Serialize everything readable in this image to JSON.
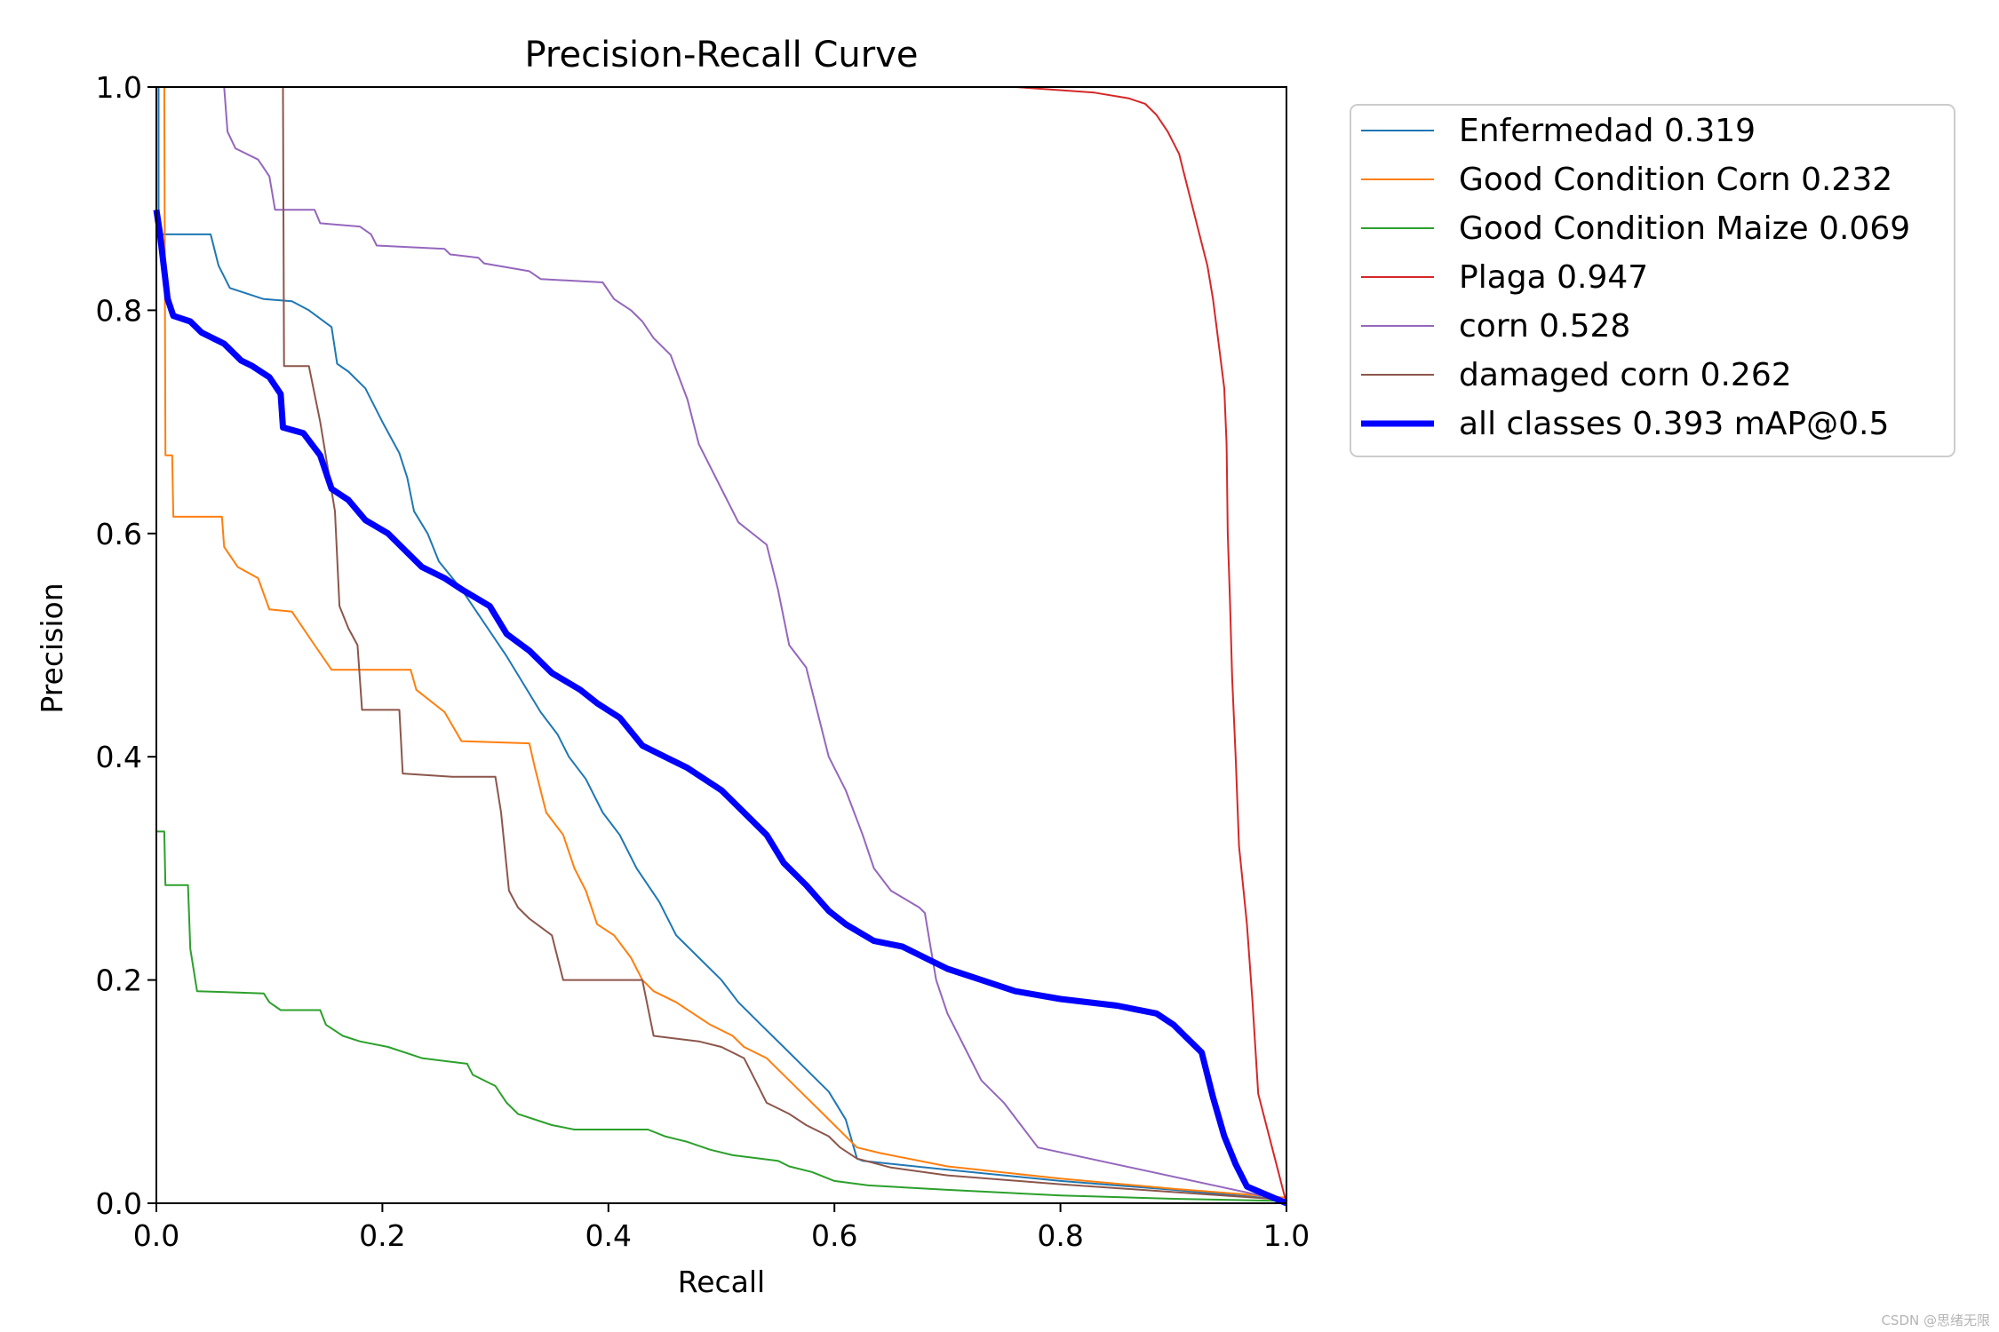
{
  "chart_data": {
    "type": "line",
    "title": "Precision-Recall Curve",
    "xlabel": "Recall",
    "ylabel": "Precision",
    "xlim": [
      0,
      1
    ],
    "ylim": [
      0,
      1
    ],
    "grid": false,
    "legend_position": "outside-top-right",
    "xticks": [
      "0.0",
      "0.2",
      "0.4",
      "0.6",
      "0.8",
      "1.0"
    ],
    "yticks": [
      "0.0",
      "0.2",
      "0.4",
      "0.6",
      "0.8",
      "1.0"
    ],
    "series": [
      {
        "name": "Enfermedad",
        "ap": "0.319",
        "label": "Enfermedad 0.319",
        "color": "#1f77b4",
        "width": 2,
        "points": [
          [
            0,
            1.0
          ],
          [
            0.002,
            1.0
          ],
          [
            0.002,
            0.868
          ],
          [
            0.048,
            0.868
          ],
          [
            0.055,
            0.84
          ],
          [
            0.065,
            0.82
          ],
          [
            0.095,
            0.81
          ],
          [
            0.12,
            0.808
          ],
          [
            0.135,
            0.8
          ],
          [
            0.155,
            0.785
          ],
          [
            0.16,
            0.752
          ],
          [
            0.17,
            0.745
          ],
          [
            0.185,
            0.73
          ],
          [
            0.2,
            0.7
          ],
          [
            0.215,
            0.672
          ],
          [
            0.222,
            0.65
          ],
          [
            0.228,
            0.62
          ],
          [
            0.24,
            0.6
          ],
          [
            0.25,
            0.575
          ],
          [
            0.27,
            0.55
          ],
          [
            0.29,
            0.52
          ],
          [
            0.31,
            0.49
          ],
          [
            0.325,
            0.465
          ],
          [
            0.34,
            0.44
          ],
          [
            0.355,
            0.42
          ],
          [
            0.365,
            0.4
          ],
          [
            0.38,
            0.38
          ],
          [
            0.395,
            0.35
          ],
          [
            0.41,
            0.33
          ],
          [
            0.425,
            0.3
          ],
          [
            0.445,
            0.27
          ],
          [
            0.46,
            0.24
          ],
          [
            0.48,
            0.22
          ],
          [
            0.5,
            0.2
          ],
          [
            0.515,
            0.18
          ],
          [
            0.535,
            0.16
          ],
          [
            0.555,
            0.14
          ],
          [
            0.575,
            0.12
          ],
          [
            0.595,
            0.1
          ],
          [
            0.61,
            0.075
          ],
          [
            0.62,
            0.04
          ],
          [
            0.625,
            0.038
          ],
          [
            0.7,
            0.03
          ],
          [
            0.8,
            0.02
          ],
          [
            0.9,
            0.012
          ],
          [
            1.0,
            0.003
          ]
        ]
      },
      {
        "name": "Good Condition Corn",
        "ap": "0.232",
        "label": "Good Condition Corn 0.232",
        "color": "#ff7f0e",
        "width": 2,
        "points": [
          [
            0,
            1.0
          ],
          [
            0.007,
            1.0
          ],
          [
            0.008,
            0.67
          ],
          [
            0.014,
            0.67
          ],
          [
            0.015,
            0.615
          ],
          [
            0.058,
            0.615
          ],
          [
            0.06,
            0.588
          ],
          [
            0.072,
            0.57
          ],
          [
            0.09,
            0.56
          ],
          [
            0.1,
            0.532
          ],
          [
            0.12,
            0.53
          ],
          [
            0.14,
            0.5
          ],
          [
            0.155,
            0.478
          ],
          [
            0.225,
            0.478
          ],
          [
            0.23,
            0.46
          ],
          [
            0.255,
            0.44
          ],
          [
            0.27,
            0.414
          ],
          [
            0.33,
            0.412
          ],
          [
            0.335,
            0.39
          ],
          [
            0.345,
            0.35
          ],
          [
            0.36,
            0.33
          ],
          [
            0.37,
            0.3
          ],
          [
            0.38,
            0.28
          ],
          [
            0.39,
            0.25
          ],
          [
            0.405,
            0.24
          ],
          [
            0.42,
            0.22
          ],
          [
            0.43,
            0.2
          ],
          [
            0.44,
            0.19
          ],
          [
            0.46,
            0.18
          ],
          [
            0.49,
            0.16
          ],
          [
            0.51,
            0.15
          ],
          [
            0.52,
            0.14
          ],
          [
            0.54,
            0.13
          ],
          [
            0.55,
            0.12
          ],
          [
            0.56,
            0.11
          ],
          [
            0.57,
            0.1
          ],
          [
            0.58,
            0.09
          ],
          [
            0.59,
            0.08
          ],
          [
            0.6,
            0.07
          ],
          [
            0.61,
            0.06
          ],
          [
            0.62,
            0.05
          ],
          [
            0.64,
            0.045
          ],
          [
            0.7,
            0.033
          ],
          [
            0.8,
            0.022
          ],
          [
            0.9,
            0.013
          ],
          [
            1.0,
            0.005
          ]
        ]
      },
      {
        "name": "Good Condition Maize",
        "ap": "0.069",
        "label": "Good Condition Maize 0.069",
        "color": "#2ca02c",
        "width": 2,
        "points": [
          [
            0,
            0.333
          ],
          [
            0.007,
            0.333
          ],
          [
            0.008,
            0.285
          ],
          [
            0.028,
            0.285
          ],
          [
            0.03,
            0.228
          ],
          [
            0.036,
            0.19
          ],
          [
            0.095,
            0.188
          ],
          [
            0.1,
            0.18
          ],
          [
            0.11,
            0.173
          ],
          [
            0.145,
            0.173
          ],
          [
            0.15,
            0.16
          ],
          [
            0.165,
            0.15
          ],
          [
            0.18,
            0.145
          ],
          [
            0.205,
            0.14
          ],
          [
            0.235,
            0.13
          ],
          [
            0.275,
            0.125
          ],
          [
            0.28,
            0.115
          ],
          [
            0.3,
            0.105
          ],
          [
            0.31,
            0.09
          ],
          [
            0.32,
            0.08
          ],
          [
            0.35,
            0.07
          ],
          [
            0.37,
            0.066
          ],
          [
            0.435,
            0.066
          ],
          [
            0.45,
            0.06
          ],
          [
            0.47,
            0.055
          ],
          [
            0.49,
            0.048
          ],
          [
            0.51,
            0.043
          ],
          [
            0.55,
            0.038
          ],
          [
            0.56,
            0.033
          ],
          [
            0.58,
            0.028
          ],
          [
            0.6,
            0.02
          ],
          [
            0.63,
            0.016
          ],
          [
            0.7,
            0.012
          ],
          [
            0.8,
            0.007
          ],
          [
            0.9,
            0.004
          ],
          [
            1.0,
            0.002
          ]
        ]
      },
      {
        "name": "Plaga",
        "ap": "0.947",
        "label": "Plaga 0.947",
        "color": "#d62728",
        "width": 2,
        "points": [
          [
            0.56,
            1.0
          ],
          [
            0.76,
            1.0
          ],
          [
            0.83,
            0.995
          ],
          [
            0.86,
            0.99
          ],
          [
            0.875,
            0.985
          ],
          [
            0.885,
            0.975
          ],
          [
            0.895,
            0.96
          ],
          [
            0.905,
            0.94
          ],
          [
            0.91,
            0.92
          ],
          [
            0.915,
            0.9
          ],
          [
            0.92,
            0.88
          ],
          [
            0.925,
            0.86
          ],
          [
            0.93,
            0.84
          ],
          [
            0.935,
            0.81
          ],
          [
            0.94,
            0.77
          ],
          [
            0.945,
            0.73
          ],
          [
            0.947,
            0.68
          ],
          [
            0.948,
            0.6
          ],
          [
            0.95,
            0.54
          ],
          [
            0.952,
            0.47
          ],
          [
            0.955,
            0.4
          ],
          [
            0.958,
            0.32
          ],
          [
            0.962,
            0.28
          ],
          [
            0.965,
            0.25
          ],
          [
            0.97,
            0.18
          ],
          [
            0.975,
            0.098
          ],
          [
            1.0,
            0.0
          ]
        ]
      },
      {
        "name": "corn",
        "ap": "0.528",
        "label": "corn 0.528",
        "color": "#9467bd",
        "width": 2,
        "points": [
          [
            0.06,
            1.0
          ],
          [
            0.063,
            0.96
          ],
          [
            0.07,
            0.945
          ],
          [
            0.09,
            0.935
          ],
          [
            0.1,
            0.92
          ],
          [
            0.105,
            0.89
          ],
          [
            0.14,
            0.89
          ],
          [
            0.145,
            0.878
          ],
          [
            0.18,
            0.875
          ],
          [
            0.19,
            0.868
          ],
          [
            0.195,
            0.858
          ],
          [
            0.255,
            0.855
          ],
          [
            0.26,
            0.85
          ],
          [
            0.285,
            0.847
          ],
          [
            0.29,
            0.842
          ],
          [
            0.33,
            0.835
          ],
          [
            0.34,
            0.828
          ],
          [
            0.395,
            0.825
          ],
          [
            0.405,
            0.81
          ],
          [
            0.42,
            0.8
          ],
          [
            0.43,
            0.79
          ],
          [
            0.44,
            0.775
          ],
          [
            0.455,
            0.76
          ],
          [
            0.47,
            0.72
          ],
          [
            0.48,
            0.68
          ],
          [
            0.5,
            0.64
          ],
          [
            0.515,
            0.61
          ],
          [
            0.54,
            0.59
          ],
          [
            0.55,
            0.55
          ],
          [
            0.56,
            0.5
          ],
          [
            0.575,
            0.48
          ],
          [
            0.585,
            0.44
          ],
          [
            0.595,
            0.4
          ],
          [
            0.61,
            0.37
          ],
          [
            0.625,
            0.33
          ],
          [
            0.635,
            0.3
          ],
          [
            0.65,
            0.28
          ],
          [
            0.675,
            0.265
          ],
          [
            0.68,
            0.26
          ],
          [
            0.685,
            0.23
          ],
          [
            0.69,
            0.2
          ],
          [
            0.7,
            0.17
          ],
          [
            0.715,
            0.14
          ],
          [
            0.73,
            0.11
          ],
          [
            0.75,
            0.09
          ],
          [
            0.765,
            0.07
          ],
          [
            0.78,
            0.05
          ],
          [
            1.0,
            0.002
          ]
        ]
      },
      {
        "name": "damaged corn",
        "ap": "0.262",
        "label": "damaged corn 0.262",
        "color": "#8c564b",
        "width": 2,
        "points": [
          [
            0.112,
            1.0
          ],
          [
            0.113,
            0.75
          ],
          [
            0.135,
            0.75
          ],
          [
            0.145,
            0.7
          ],
          [
            0.158,
            0.62
          ],
          [
            0.162,
            0.535
          ],
          [
            0.17,
            0.515
          ],
          [
            0.178,
            0.5
          ],
          [
            0.182,
            0.442
          ],
          [
            0.215,
            0.442
          ],
          [
            0.218,
            0.385
          ],
          [
            0.262,
            0.382
          ],
          [
            0.3,
            0.382
          ],
          [
            0.305,
            0.35
          ],
          [
            0.312,
            0.28
          ],
          [
            0.32,
            0.265
          ],
          [
            0.33,
            0.255
          ],
          [
            0.35,
            0.24
          ],
          [
            0.36,
            0.2
          ],
          [
            0.43,
            0.2
          ],
          [
            0.44,
            0.15
          ],
          [
            0.48,
            0.145
          ],
          [
            0.5,
            0.14
          ],
          [
            0.52,
            0.13
          ],
          [
            0.53,
            0.11
          ],
          [
            0.54,
            0.09
          ],
          [
            0.56,
            0.08
          ],
          [
            0.575,
            0.07
          ],
          [
            0.595,
            0.06
          ],
          [
            0.605,
            0.05
          ],
          [
            0.62,
            0.04
          ],
          [
            0.65,
            0.032
          ],
          [
            0.7,
            0.025
          ],
          [
            0.8,
            0.017
          ],
          [
            0.9,
            0.01
          ],
          [
            1.0,
            0.003
          ]
        ]
      },
      {
        "name": "all classes",
        "ap": "0.393",
        "label": "all classes 0.393 mAP@0.5",
        "color": "#0000ff",
        "width": 7,
        "points": [
          [
            0,
            0.89
          ],
          [
            0.003,
            0.87
          ],
          [
            0.01,
            0.81
          ],
          [
            0.015,
            0.795
          ],
          [
            0.03,
            0.79
          ],
          [
            0.04,
            0.78
          ],
          [
            0.06,
            0.77
          ],
          [
            0.075,
            0.755
          ],
          [
            0.085,
            0.75
          ],
          [
            0.1,
            0.74
          ],
          [
            0.11,
            0.725
          ],
          [
            0.112,
            0.695
          ],
          [
            0.13,
            0.69
          ],
          [
            0.145,
            0.67
          ],
          [
            0.155,
            0.64
          ],
          [
            0.17,
            0.63
          ],
          [
            0.185,
            0.612
          ],
          [
            0.205,
            0.6
          ],
          [
            0.22,
            0.585
          ],
          [
            0.235,
            0.57
          ],
          [
            0.255,
            0.56
          ],
          [
            0.27,
            0.55
          ],
          [
            0.295,
            0.535
          ],
          [
            0.31,
            0.51
          ],
          [
            0.33,
            0.495
          ],
          [
            0.35,
            0.475
          ],
          [
            0.375,
            0.46
          ],
          [
            0.39,
            0.448
          ],
          [
            0.41,
            0.435
          ],
          [
            0.43,
            0.41
          ],
          [
            0.45,
            0.4
          ],
          [
            0.47,
            0.39
          ],
          [
            0.5,
            0.37
          ],
          [
            0.52,
            0.35
          ],
          [
            0.54,
            0.33
          ],
          [
            0.555,
            0.305
          ],
          [
            0.575,
            0.285
          ],
          [
            0.595,
            0.262
          ],
          [
            0.61,
            0.25
          ],
          [
            0.635,
            0.235
          ],
          [
            0.66,
            0.23
          ],
          [
            0.68,
            0.22
          ],
          [
            0.7,
            0.21
          ],
          [
            0.73,
            0.2
          ],
          [
            0.76,
            0.19
          ],
          [
            0.8,
            0.183
          ],
          [
            0.85,
            0.177
          ],
          [
            0.885,
            0.17
          ],
          [
            0.9,
            0.16
          ],
          [
            0.91,
            0.15
          ],
          [
            0.925,
            0.135
          ],
          [
            0.935,
            0.095
          ],
          [
            0.945,
            0.06
          ],
          [
            0.955,
            0.035
          ],
          [
            0.965,
            0.015
          ],
          [
            1.0,
            0.0
          ]
        ]
      }
    ]
  },
  "watermark": "CSDN @思绪无限"
}
